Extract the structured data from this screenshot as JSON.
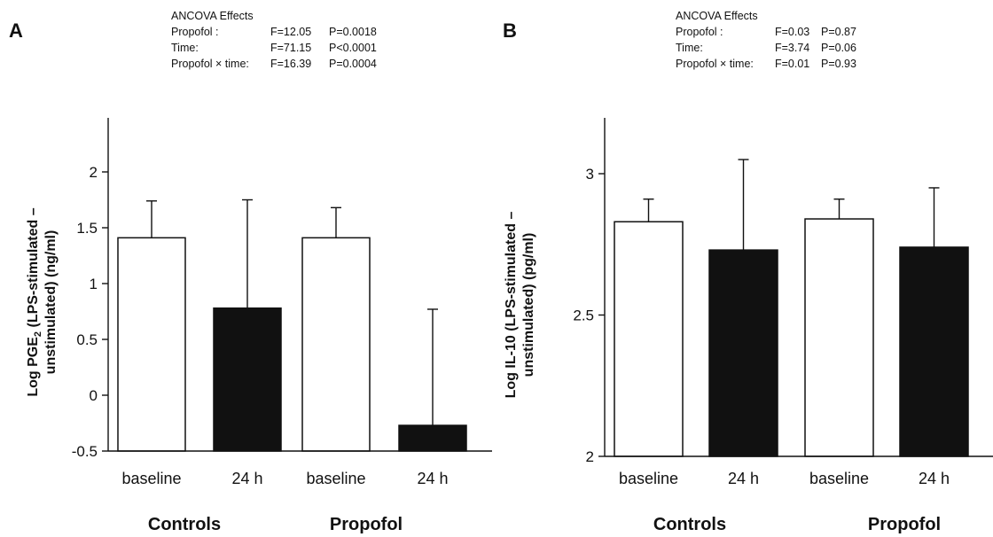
{
  "panels": [
    {
      "letter": "A",
      "ancova_title": "ANCOVA Effects",
      "ancova_rows": [
        {
          "label": "Propofol :",
          "f": "F=12.05",
          "p": "P=0.0018"
        },
        {
          "label": "Time:",
          "f": "F=71.15",
          "p": "P<0.0001"
        },
        {
          "label": "Propofol × time:",
          "f": "F=16.39",
          "p": "P=0.0004"
        }
      ]
    },
    {
      "letter": "B",
      "ancova_title": "ANCOVA Effects",
      "ancova_rows": [
        {
          "label": "Propofol :",
          "f": "F=0.03",
          "p": "P=0.87"
        },
        {
          "label": "Time:",
          "f": "F=3.74",
          "p": "P=0.06"
        },
        {
          "label": "Propofol × time:",
          "f": "F=0.01",
          "p": "P=0.93"
        }
      ]
    }
  ],
  "chart_data": [
    {
      "type": "bar",
      "categories": [
        "baseline",
        "24 h",
        "baseline",
        "24 h"
      ],
      "groups": [
        "Controls",
        "Propofol"
      ],
      "values": [
        1.41,
        0.78,
        1.41,
        -0.27
      ],
      "error_upper": [
        1.74,
        1.75,
        1.68,
        0.77
      ],
      "bar_colors": [
        "#ffffff",
        "#111111",
        "#ffffff",
        "#111111"
      ],
      "ylabel_line1_pre": "Log PGE",
      "ylabel_line1_sub": "2",
      "ylabel_line1_post": " (LPS-stimulated –",
      "ylabel_line2": "unstimulated) (ng/ml)",
      "ylim": [
        -0.5,
        2
      ],
      "yticks": [
        -0.5,
        0,
        0.5,
        1,
        1.5,
        2
      ],
      "ytick_labels": [
        "-0.5",
        "0",
        "0.5",
        "1",
        "1.5",
        "2"
      ]
    },
    {
      "type": "bar",
      "categories": [
        "baseline",
        "24 h",
        "baseline",
        "24 h"
      ],
      "groups": [
        "Controls",
        "Propofol"
      ],
      "values": [
        2.83,
        2.73,
        2.84,
        2.74
      ],
      "error_upper": [
        2.91,
        3.05,
        2.91,
        2.95
      ],
      "bar_colors": [
        "#ffffff",
        "#111111",
        "#ffffff",
        "#111111"
      ],
      "ylabel_line1_pre": "Log IL-10 (LPS-stimulated –",
      "ylabel_line1_sub": "",
      "ylabel_line1_post": "",
      "ylabel_line2": "unstimulated) (pg/ml)",
      "ylim": [
        2,
        3.2
      ],
      "yticks": [
        2,
        2.5,
        3
      ],
      "ytick_labels": [
        "2",
        "2.5",
        "3"
      ]
    }
  ]
}
